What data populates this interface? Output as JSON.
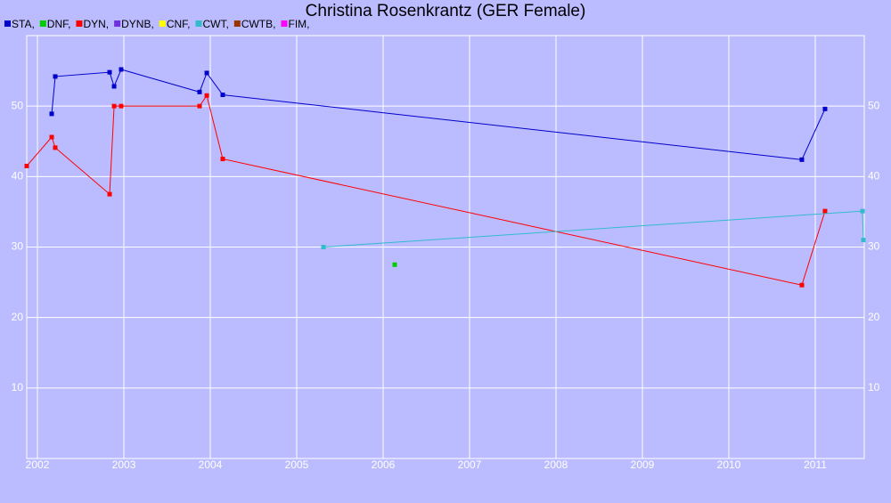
{
  "chart_data": {
    "type": "line",
    "title": "Christina Rosenkrantz (GER Female)",
    "xlim": [
      2001.876,
      2011.567
    ],
    "xticks": [
      2002,
      2003,
      2004,
      2005,
      2006,
      2007,
      2008,
      2009,
      2010,
      2011
    ],
    "ylim": [
      0,
      60
    ],
    "yticks": [
      10,
      20,
      30,
      40,
      50
    ],
    "grid": true,
    "legend": "top-left",
    "series": [
      {
        "name": "STA,",
        "color": "#0000cc",
        "x": [
          2002.165,
          2002.206,
          2002.835,
          2002.887,
          2002.969,
          2003.876,
          2003.959,
          2004.144,
          2010.845,
          2011.113
        ],
        "values": [
          48.9,
          54.2,
          54.8,
          52.8,
          55.2,
          52.0,
          54.7,
          51.6,
          42.4,
          49.6
        ]
      },
      {
        "name": "DNF,",
        "color": "#00cc00",
        "x": [
          2006.134
        ],
        "values": [
          27.5
        ]
      },
      {
        "name": "DYN,",
        "color": "#ff0000",
        "x": [
          2001.876,
          2002.165,
          2002.206,
          2002.835,
          2002.887,
          2002.969,
          2003.876,
          2003.959,
          2004.144,
          2010.845,
          2011.113
        ],
        "values": [
          41.5,
          45.6,
          44.1,
          37.5,
          50.0,
          50.0,
          50.0,
          51.5,
          42.5,
          24.6,
          35.1
        ]
      },
      {
        "name": "DYNB,",
        "color": "#7030e0",
        "x": [],
        "values": []
      },
      {
        "name": "CNF,",
        "color": "#ffff00",
        "x": [],
        "values": []
      },
      {
        "name": "CWT,",
        "color": "#33bbcc",
        "x": [
          2005.309,
          2011.546,
          2011.557
        ],
        "values": [
          30.0,
          35.1,
          31.0
        ]
      },
      {
        "name": "CWTB,",
        "color": "#993300",
        "x": [],
        "values": []
      },
      {
        "name": "FIM,",
        "color": "#ff00ff",
        "x": [],
        "values": []
      }
    ]
  }
}
